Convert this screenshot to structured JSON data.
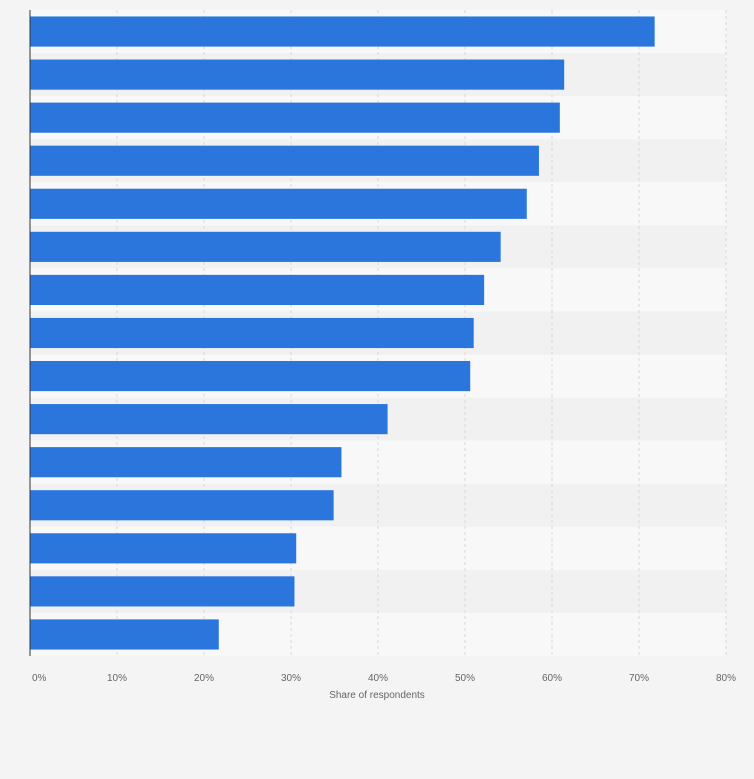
{
  "chart_data": {
    "type": "bar",
    "orientation": "horizontal",
    "values": [
      71.8,
      61.4,
      60.9,
      58.5,
      57.1,
      54.1,
      52.2,
      51.0,
      50.6,
      41.1,
      35.8,
      34.9,
      30.6,
      30.4,
      21.7
    ],
    "xlabel": "Share of respondents",
    "ylabel": "",
    "xlim": [
      0,
      80
    ],
    "x_ticks": [
      "0%",
      "10%",
      "20%",
      "30%",
      "40%",
      "50%",
      "60%",
      "70%",
      "80%"
    ],
    "grid": true,
    "colors": {
      "bar": "#2a76dd",
      "band_light": "#f8f8f8",
      "band_dark": "#f1f1f1",
      "grid": "#d9d9d9",
      "axis": "#333333",
      "background": "#f4f4f4",
      "plot_background": "#ffffff"
    }
  }
}
